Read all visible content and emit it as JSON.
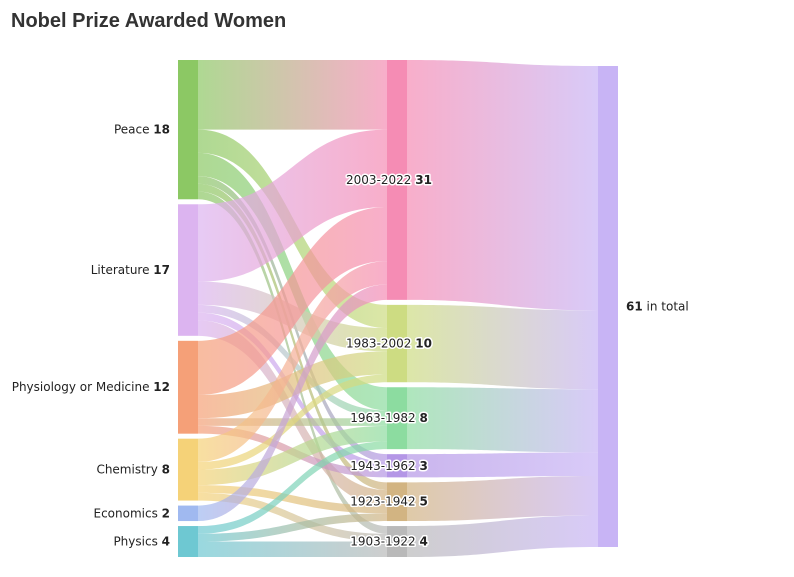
{
  "chart_data": {
    "type": "sankey",
    "title": "Nobel Prize Awarded Women",
    "total_suffix": " in total",
    "columns": [
      {
        "nodes": [
          {
            "id": "Peace",
            "label": "Peace",
            "value": 18,
            "color": "#8cc864"
          },
          {
            "id": "Literature",
            "label": "Literature",
            "value": 17,
            "color": "#dcb4f0"
          },
          {
            "id": "Physiology or Medicine",
            "label": "Physiology or Medicine",
            "value": 12,
            "color": "#f5a078"
          },
          {
            "id": "Chemistry",
            "label": "Chemistry",
            "value": 8,
            "color": "#f5d278"
          },
          {
            "id": "Economics",
            "label": "Economics",
            "value": 2,
            "color": "#a0b9f0"
          },
          {
            "id": "Physics",
            "label": "Physics",
            "value": 4,
            "color": "#6ec8d2"
          }
        ]
      },
      {
        "nodes": [
          {
            "id": "2003-2022",
            "label": "2003-2022",
            "value": 31,
            "color": "#f58cb4"
          },
          {
            "id": "1983-2002",
            "label": "1983-2002",
            "value": 10,
            "color": "#cddc82"
          },
          {
            "id": "1963-1982",
            "label": "1963-1982",
            "value": 8,
            "color": "#8cdca0"
          },
          {
            "id": "1943-1962",
            "label": "1943-1962",
            "value": 3,
            "color": "#b496e6"
          },
          {
            "id": "1923-1942",
            "label": "1923-1942",
            "value": 5,
            "color": "#d2b482"
          },
          {
            "id": "1903-1922",
            "label": "1903-1922",
            "value": 4,
            "color": "#b9b9b9"
          }
        ]
      },
      {
        "nodes": [
          {
            "id": "total",
            "label": "",
            "value": 61,
            "color": "#c8b4f5"
          }
        ]
      }
    ],
    "links": [
      {
        "source": "Peace",
        "target": "2003-2022",
        "value": 9
      },
      {
        "source": "Peace",
        "target": "1983-2002",
        "value": 3
      },
      {
        "source": "Peace",
        "target": "1963-1982",
        "value": 3
      },
      {
        "source": "Peace",
        "target": "1943-1962",
        "value": 1
      },
      {
        "source": "Peace",
        "target": "1923-1942",
        "value": 1
      },
      {
        "source": "Peace",
        "target": "1903-1922",
        "value": 1
      },
      {
        "source": "Literature",
        "target": "2003-2022",
        "value": 10
      },
      {
        "source": "Literature",
        "target": "1983-2002",
        "value": 3
      },
      {
        "source": "Literature",
        "target": "1963-1982",
        "value": 1
      },
      {
        "source": "Literature",
        "target": "1943-1962",
        "value": 1
      },
      {
        "source": "Literature",
        "target": "1923-1942",
        "value": 2
      },
      {
        "source": "Physiology or Medicine",
        "target": "2003-2022",
        "value": 7
      },
      {
        "source": "Physiology or Medicine",
        "target": "1983-2002",
        "value": 3
      },
      {
        "source": "Physiology or Medicine",
        "target": "1963-1982",
        "value": 1
      },
      {
        "source": "Physiology or Medicine",
        "target": "1943-1962",
        "value": 1
      },
      {
        "source": "Chemistry",
        "target": "2003-2022",
        "value": 3
      },
      {
        "source": "Chemistry",
        "target": "1983-2002",
        "value": 1
      },
      {
        "source": "Chemistry",
        "target": "1963-1982",
        "value": 2
      },
      {
        "source": "Chemistry",
        "target": "1923-1942",
        "value": 1
      },
      {
        "source": "Chemistry",
        "target": "1903-1922",
        "value": 1
      },
      {
        "source": "Economics",
        "target": "2003-2022",
        "value": 2
      },
      {
        "source": "Physics",
        "target": "1963-1982",
        "value": 1
      },
      {
        "source": "Physics",
        "target": "1923-1942",
        "value": 1
      },
      {
        "source": "Physics",
        "target": "1903-1922",
        "value": 2
      },
      {
        "source": "2003-2022",
        "target": "total",
        "value": 31
      },
      {
        "source": "1983-2002",
        "target": "total",
        "value": 10
      },
      {
        "source": "1963-1982",
        "target": "total",
        "value": 8
      },
      {
        "source": "1943-1962",
        "target": "total",
        "value": 3
      },
      {
        "source": "1923-1942",
        "target": "total",
        "value": 5
      },
      {
        "source": "1903-1922",
        "target": "total",
        "value": 4
      }
    ]
  }
}
